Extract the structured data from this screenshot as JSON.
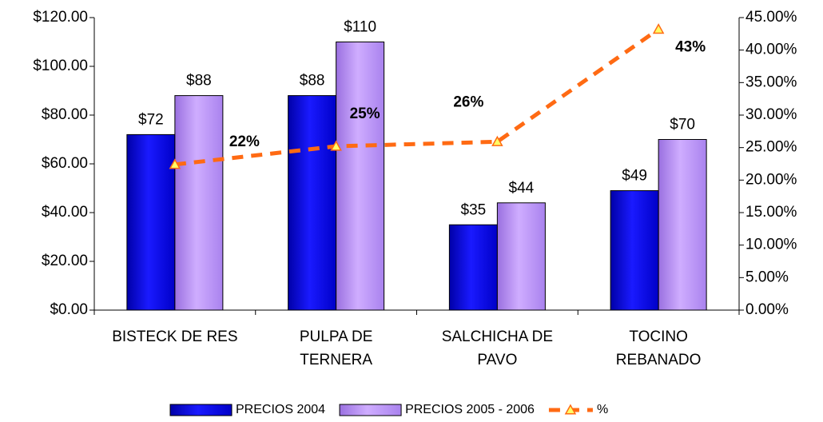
{
  "chart_data": {
    "type": "bar",
    "categories": [
      [
        "BISTECK DE RES"
      ],
      [
        "PULPA DE",
        "TERNERA"
      ],
      [
        "SALCHICHA DE",
        "PAVO"
      ],
      [
        "TOCINO",
        "REBANADO"
      ]
    ],
    "series": [
      {
        "name": "PRECIOS 2004",
        "color": "#1010f0",
        "values": [
          72,
          88,
          35,
          49
        ],
        "value_labels": [
          "$72",
          "$88",
          "$35",
          "$49"
        ]
      },
      {
        "name": "PRECIOS 2005 - 2006",
        "color": "#bf99ff",
        "values": [
          88,
          110,
          44,
          70
        ],
        "value_labels": [
          "$88",
          "$110",
          "$44",
          "$70"
        ]
      },
      {
        "name": "%",
        "type": "line",
        "axis": "y2",
        "color": "#ff6a13",
        "values": [
          22.4,
          25.2,
          25.9,
          43.2
        ],
        "value_labels": [
          "22%",
          "25%",
          "26%",
          "43%"
        ]
      }
    ],
    "ylim": [
      0,
      120
    ],
    "yticks": [
      {
        "value": 0,
        "label": "$0.00"
      },
      {
        "value": 20,
        "label": "$20.00"
      },
      {
        "value": 40,
        "label": "$40.00"
      },
      {
        "value": 60,
        "label": "$60.00"
      },
      {
        "value": 80,
        "label": "$80.00"
      },
      {
        "value": 100,
        "label": "$100.00"
      },
      {
        "value": 120,
        "label": "$120.00"
      }
    ],
    "y2lim": [
      0,
      45
    ],
    "y2ticks": [
      {
        "value": 0,
        "label": "0.00%"
      },
      {
        "value": 5,
        "label": "5.00%"
      },
      {
        "value": 10,
        "label": "10.00%"
      },
      {
        "value": 15,
        "label": "15.00%"
      },
      {
        "value": 20,
        "label": "20.00%"
      },
      {
        "value": 25,
        "label": "25.00%"
      },
      {
        "value": 30,
        "label": "30.00%"
      },
      {
        "value": 35,
        "label": "35.00%"
      },
      {
        "value": 40,
        "label": "40.00%"
      },
      {
        "value": 45,
        "label": "45.00%"
      }
    ],
    "legend": "bottom"
  }
}
